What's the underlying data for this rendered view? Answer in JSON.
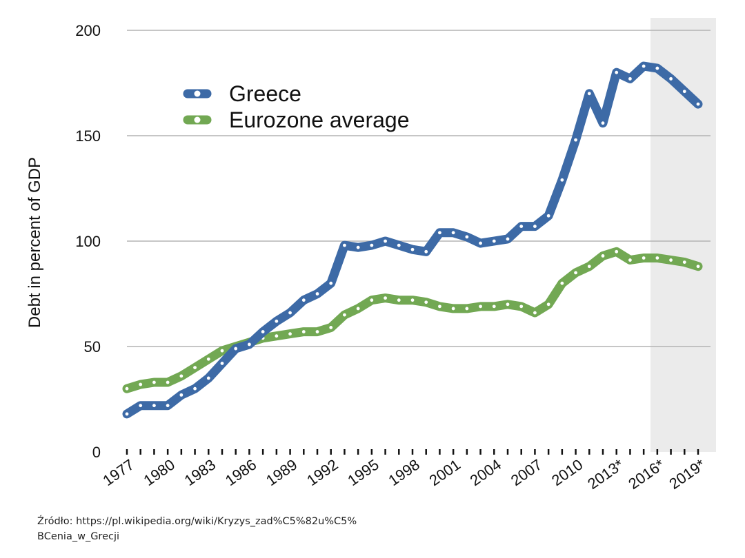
{
  "chart_data": {
    "type": "line",
    "title": "",
    "xlabel": "",
    "ylabel": "Debt in percent of GDP",
    "ylim": [
      0,
      200
    ],
    "yticks": [
      0,
      50,
      100,
      150,
      200
    ],
    "x": [
      1977,
      1978,
      1979,
      1980,
      1981,
      1982,
      1983,
      1984,
      1985,
      1986,
      1987,
      1988,
      1989,
      1990,
      1991,
      1992,
      1993,
      1994,
      1995,
      1996,
      1997,
      1998,
      1999,
      2000,
      2001,
      2002,
      2003,
      2004,
      2005,
      2006,
      2007,
      2008,
      2009,
      2010,
      2011,
      2012,
      2013,
      2014,
      2015,
      2016,
      2017,
      2018,
      2019
    ],
    "xtick_labels": [
      "1977",
      "1980",
      "1983",
      "1986",
      "1989",
      "1992",
      "1995",
      "1998",
      "2001",
      "2004",
      "2007",
      "2010",
      "2013*",
      "2016*",
      "2019*"
    ],
    "projection_start": 2016,
    "legend_position": "top-left",
    "grid": true,
    "series": [
      {
        "name": "Greece",
        "color": "#3d6aa6",
        "values": [
          18,
          22,
          22,
          22,
          27,
          30,
          35,
          42,
          49,
          51,
          57,
          62,
          66,
          72,
          75,
          80,
          98,
          97,
          98,
          100,
          98,
          96,
          95,
          104,
          104,
          102,
          99,
          100,
          101,
          107,
          107,
          112,
          129,
          148,
          170,
          156,
          180,
          177,
          183,
          182,
          177,
          171,
          165
        ]
      },
      {
        "name": "Eurozone average",
        "color": "#72a853",
        "values": [
          30,
          32,
          33,
          33,
          36,
          40,
          44,
          48,
          50,
          52,
          54,
          55,
          56,
          57,
          57,
          59,
          65,
          68,
          72,
          73,
          72,
          72,
          71,
          69,
          68,
          68,
          69,
          69,
          70,
          69,
          66,
          70,
          80,
          85,
          88,
          93,
          95,
          91,
          92,
          92,
          91,
          90,
          88
        ]
      }
    ]
  },
  "source": {
    "line1": "Źródło: https://pl.wikipedia.org/wiki/Kryzys_zad%C5%82u%C5%",
    "line2": "BCenia_w_Grecji"
  }
}
